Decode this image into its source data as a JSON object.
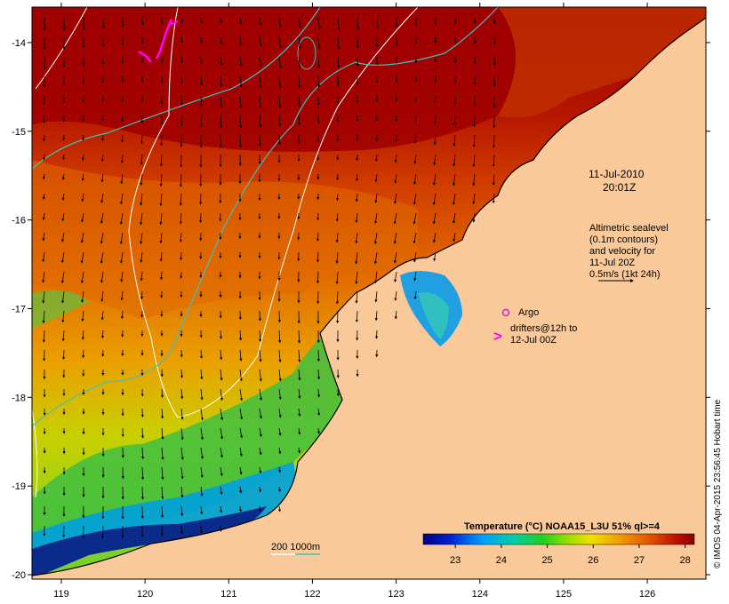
{
  "map": {
    "lon_ticks": [
      "119",
      "120",
      "121",
      "122",
      "123",
      "124",
      "125",
      "126"
    ],
    "lat_ticks": [
      "-14",
      "-15",
      "-16",
      "-17",
      "-18",
      "-19",
      "-20"
    ],
    "lon_range": [
      118.65,
      126.7
    ],
    "lat_range": [
      -20.05,
      -13.6
    ]
  },
  "annotations": {
    "date": "11-Jul-2010",
    "time": "20:01Z",
    "altimetry_lines": [
      "Altimetric sealevel",
      "(0.1m contours)",
      "and velocity for",
      "11-Jul 20Z",
      "0.5m/s (1kt 24h)"
    ],
    "argo_label": "Argo",
    "drifter_lines": [
      "drifters@12h to",
      "12-Jul 00Z"
    ],
    "drifter_marker": ">",
    "contour_legend": "200  1000m"
  },
  "colorbar": {
    "title": "Temperature (°C) NOAA15_L3U 51% ql>=4",
    "ticks": [
      "23",
      "24",
      "25",
      "26",
      "27",
      "28"
    ],
    "range": [
      22.3,
      28.2
    ]
  },
  "credit": "© IMOS 04-Apr-2015 23:56:45 Hobart time",
  "colors": {
    "land": "#f9c99a",
    "warm": "#a00000",
    "cool": "#0a2a8c",
    "drifter": "#ff00ff",
    "argo": "#cc22cc",
    "bathy_200": "#ffffff",
    "bathy_1000": "#40c0c0"
  }
}
